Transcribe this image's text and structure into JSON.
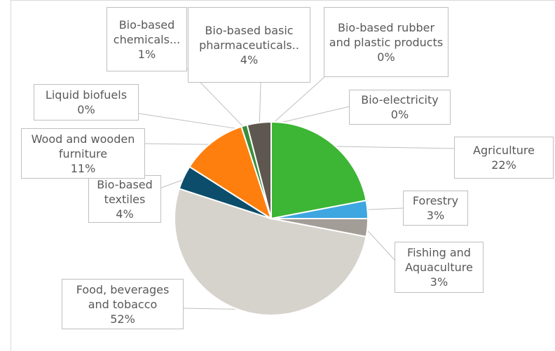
{
  "chart_data": {
    "type": "pie",
    "categories": [
      "Agriculture",
      "Forestry",
      "Fishing and Aquaculture",
      "Food, beverages and tobacco",
      "Bio-based textiles",
      "Wood and wooden furniture",
      "Liquid biofuels",
      "Bio-based chemicals...",
      "Bio-based basic pharmaceuticals..",
      "Bio-based rubber and plastic products",
      "Bio-electricity"
    ],
    "values": [
      22,
      3,
      3,
      52,
      4,
      11,
      0,
      1,
      4,
      0,
      0
    ],
    "value_labels": [
      "22%",
      "3%",
      "3%",
      "52%",
      "4%",
      "11%",
      "0%",
      "1%",
      "4%",
      "0%",
      "0%"
    ],
    "colors": [
      "#3db535",
      "#3ea6e0",
      "#a39d97",
      "#d6d3cc",
      "#0c4d6b",
      "#ff7f0e",
      "#8c8c8c",
      "#3a8f3a",
      "#5e5750",
      "#a9a9a9",
      "#cccccc"
    ]
  }
}
